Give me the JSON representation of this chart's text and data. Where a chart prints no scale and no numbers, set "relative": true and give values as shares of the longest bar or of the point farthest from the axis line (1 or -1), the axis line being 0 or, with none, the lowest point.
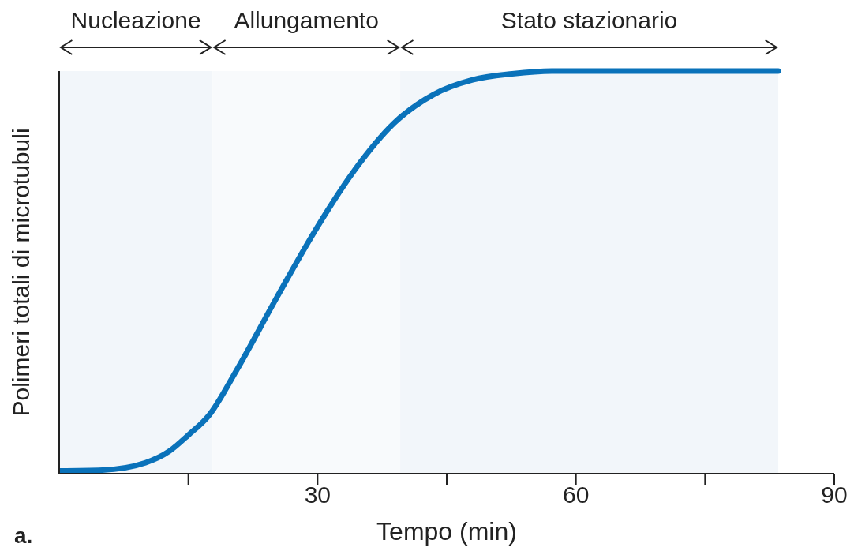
{
  "chart_data": {
    "type": "line",
    "xlabel": "Tempo (min)",
    "ylabel": "Polimeri totali di microtubuli",
    "relative": true,
    "x": [
      0,
      5,
      10,
      12.8,
      15,
      17.4,
      20.6,
      25.2,
      29.7,
      34.3,
      38.9,
      43.5,
      48,
      52.6,
      57.2,
      83.5
    ],
    "series": [
      {
        "color": "#0a72ba",
        "values": [
          0.007,
          0.009,
          0.027,
          0.056,
          0.096,
          0.145,
          0.257,
          0.435,
          0.603,
          0.754,
          0.871,
          0.942,
          0.978,
          0.993,
          1,
          1
        ]
      }
    ],
    "xlim": [
      0,
      90
    ],
    "xticks": [
      {
        "value": 15,
        "label": null
      },
      30,
      {
        "value": 45,
        "label": null
      },
      60,
      {
        "value": 75,
        "label": null
      },
      90
    ],
    "bands": [
      {
        "axis": "x",
        "from": 0,
        "to": 17.8,
        "label": "Nucleazione",
        "color": "#f2f6fa"
      },
      {
        "axis": "x",
        "from": 17.8,
        "to": 39.6,
        "label": "Allungamento",
        "color": "#f8fafc"
      },
      {
        "axis": "x",
        "from": 39.6,
        "to": 83.5,
        "label": "Stato stazionario",
        "color": "#f2f6fa"
      }
    ],
    "annotations": [
      "a."
    ],
    "grid": false,
    "legend": false,
    "marker": "none",
    "line_style": "solid"
  }
}
